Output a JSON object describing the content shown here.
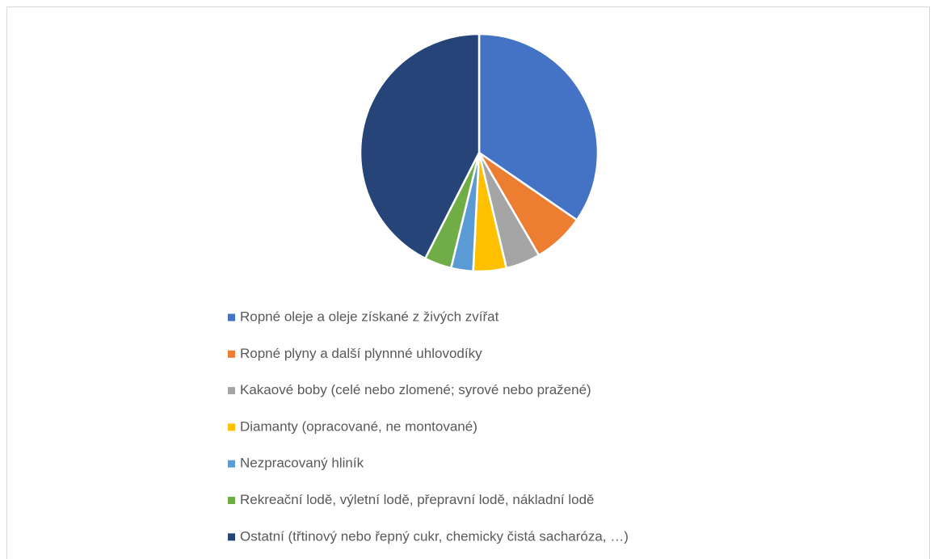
{
  "chart_data": {
    "type": "pie",
    "categories": [
      "Ropné oleje a oleje získané z živých zvířat",
      "Ropné plyny a další plynnné uhlovodíky",
      "Kakaové boby (celé nebo zlomené; syrové nebo pražené)",
      "Diamanty (opracované, ne montované)",
      "Nezpracovaný hliník",
      "Rekreační lodě, výletní lodě, přepravní lodě, nákladní lodě",
      "Ostatní (třtinový nebo řepný cukr, chemicky čistá sacharóza, …)"
    ],
    "values": [
      34.6,
      7,
      4.7,
      4.5,
      3,
      3.7,
      42.5
    ],
    "colors": [
      "#4472c4",
      "#ed7d31",
      "#a5a5a5",
      "#ffc000",
      "#5b9bd5",
      "#70ad47",
      "#264478"
    ],
    "legend": "bottom"
  }
}
